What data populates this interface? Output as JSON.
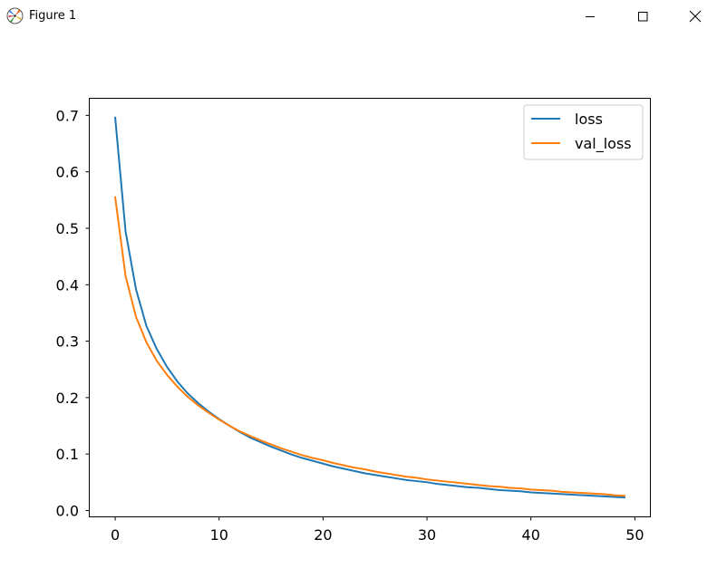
{
  "window": {
    "title": "Figure 1"
  },
  "colors": {
    "loss": "#1f77b4",
    "val_loss": "#ff7f0e"
  },
  "chart_data": {
    "type": "line",
    "title": "",
    "xlabel": "",
    "ylabel": "",
    "xlim": [
      -2.45,
      51.45
    ],
    "ylim": [
      -0.0105,
      0.7295
    ],
    "xticks": [
      0,
      10,
      20,
      30,
      40,
      50
    ],
    "xtick_labels": [
      "0",
      "10",
      "20",
      "30",
      "40",
      "50"
    ],
    "yticks": [
      0.0,
      0.1,
      0.2,
      0.3,
      0.4,
      0.5,
      0.6,
      0.7
    ],
    "ytick_labels": [
      "0.0",
      "0.1",
      "0.2",
      "0.3",
      "0.4",
      "0.5",
      "0.6",
      "0.7"
    ],
    "grid": false,
    "legend_position": "top-right",
    "x": [
      0,
      1,
      2,
      3,
      4,
      5,
      6,
      7,
      8,
      9,
      10,
      11,
      12,
      13,
      14,
      15,
      16,
      17,
      18,
      19,
      20,
      21,
      22,
      23,
      24,
      25,
      26,
      27,
      28,
      29,
      30,
      31,
      32,
      33,
      34,
      35,
      36,
      37,
      38,
      39,
      40,
      41,
      42,
      43,
      44,
      45,
      46,
      47,
      48,
      49
    ],
    "series": [
      {
        "name": "loss",
        "color": "#1f77b4",
        "values": [
          0.696,
          0.494,
          0.392,
          0.327,
          0.286,
          0.254,
          0.228,
          0.207,
          0.19,
          0.175,
          0.162,
          0.15,
          0.139,
          0.129,
          0.121,
          0.113,
          0.106,
          0.099,
          0.093,
          0.088,
          0.083,
          0.078,
          0.074,
          0.07,
          0.066,
          0.063,
          0.06,
          0.057,
          0.054,
          0.052,
          0.05,
          0.047,
          0.045,
          0.043,
          0.041,
          0.04,
          0.038,
          0.036,
          0.035,
          0.034,
          0.032,
          0.031,
          0.03,
          0.029,
          0.028,
          0.027,
          0.026,
          0.025,
          0.024,
          0.023
        ]
      },
      {
        "name": "val_loss",
        "color": "#ff7f0e",
        "values": [
          0.555,
          0.415,
          0.343,
          0.298,
          0.265,
          0.24,
          0.219,
          0.201,
          0.186,
          0.173,
          0.161,
          0.15,
          0.14,
          0.132,
          0.124,
          0.117,
          0.11,
          0.104,
          0.098,
          0.093,
          0.089,
          0.084,
          0.08,
          0.076,
          0.073,
          0.069,
          0.066,
          0.063,
          0.06,
          0.058,
          0.055,
          0.053,
          0.051,
          0.049,
          0.047,
          0.045,
          0.043,
          0.042,
          0.04,
          0.039,
          0.037,
          0.036,
          0.035,
          0.033,
          0.032,
          0.031,
          0.03,
          0.029,
          0.027,
          0.026
        ]
      }
    ]
  }
}
